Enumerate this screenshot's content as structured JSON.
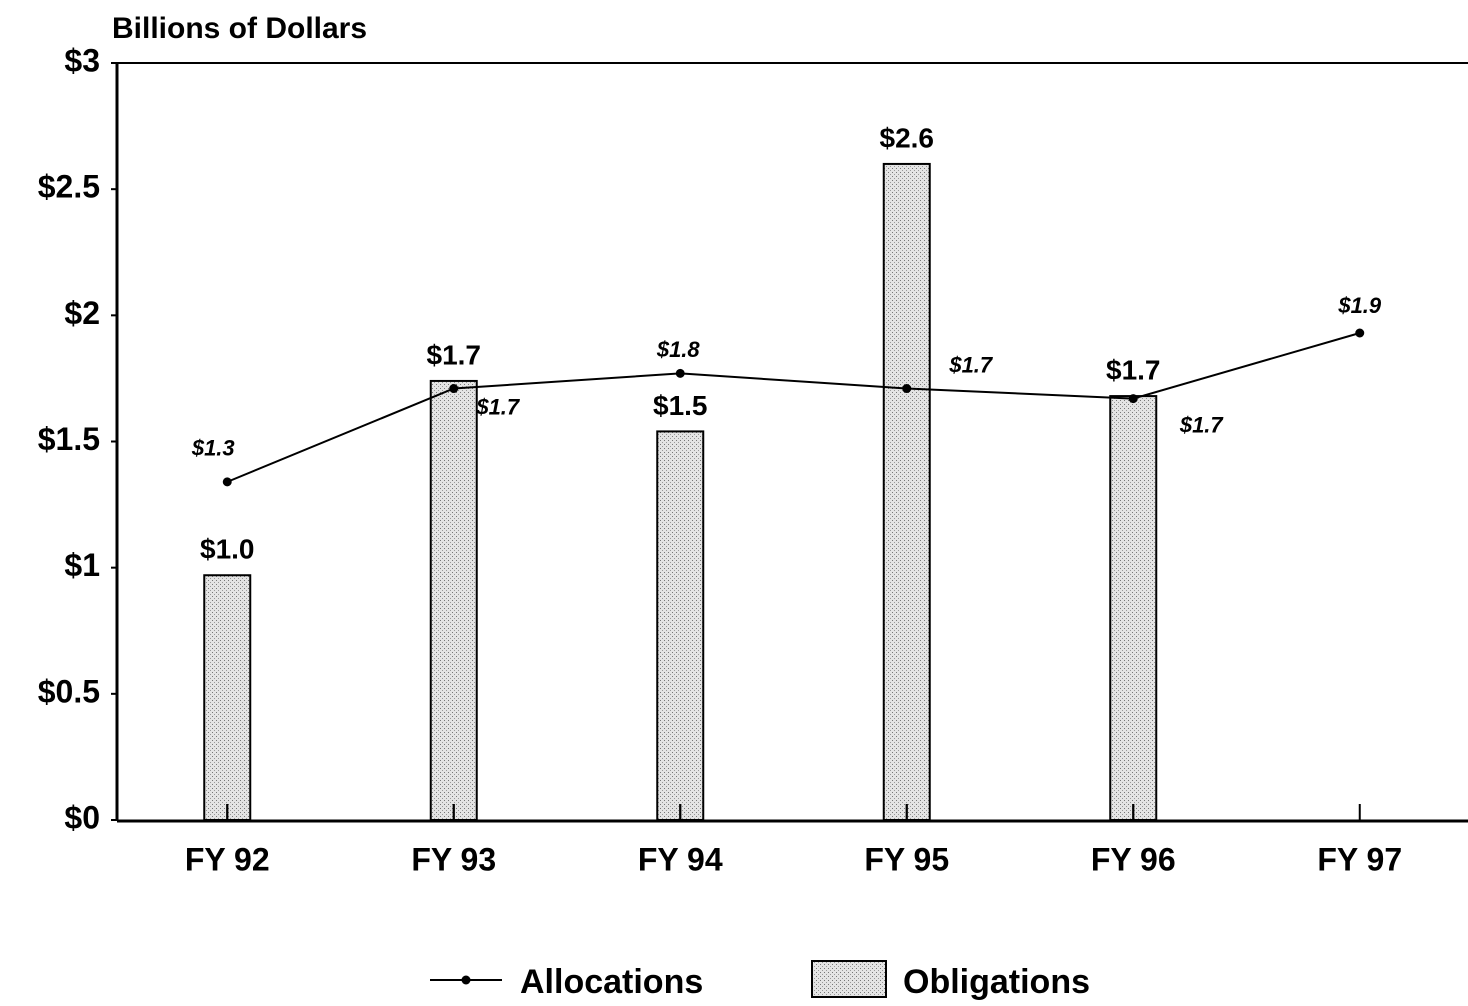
{
  "chart_data": {
    "type": "bar",
    "y_axis_label": "Billions of Dollars",
    "categories": [
      "FY 92",
      "FY 93",
      "FY 94",
      "FY 95",
      "FY 96",
      "FY 97"
    ],
    "ylim": [
      0,
      3
    ],
    "yticks": [
      {
        "value": 0,
        "label": "$0"
      },
      {
        "value": 0.5,
        "label": "$0.5"
      },
      {
        "value": 1,
        "label": "$1"
      },
      {
        "value": 1.5,
        "label": "$1.5"
      },
      {
        "value": 2,
        "label": "$2"
      },
      {
        "value": 2.5,
        "label": "$2.5"
      },
      {
        "value": 3,
        "label": "$3"
      }
    ],
    "series": [
      {
        "name": "Allocations",
        "type": "line",
        "color": "#000000",
        "values": [
          1.34,
          1.71,
          1.77,
          1.71,
          1.67,
          1.93
        ],
        "value_labels": [
          "$1.3",
          "$1.7",
          "$1.8",
          "$1.7",
          "$1.7",
          "$1.9"
        ]
      },
      {
        "name": "Obligations",
        "type": "bar",
        "color": "#d4d4d4",
        "values": [
          0.97,
          1.74,
          1.54,
          2.6,
          1.68,
          null
        ],
        "value_labels": [
          "$1.0",
          "$1.7",
          "$1.5",
          "$2.6",
          "$1.7",
          null
        ]
      }
    ],
    "legend": "bottom"
  }
}
